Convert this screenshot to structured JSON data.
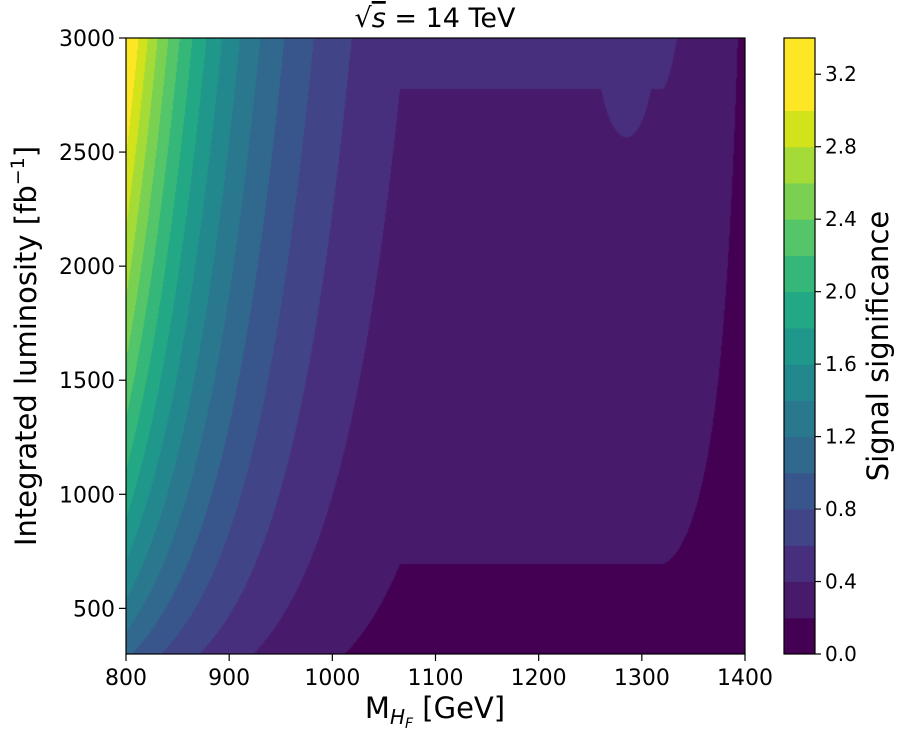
{
  "chart_data": {
    "type": "heatmap",
    "title_prefix": "√",
    "title_s": "s",
    "title_rest": " = 14 TeV",
    "xlabel_main": "M",
    "xlabel_sub_main": "H",
    "xlabel_sub_sub": "F",
    "xlabel_unit": " [GeV]",
    "ylabel_main": "Integrated luminosity [fb",
    "ylabel_sup": "−1",
    "ylabel_end": "]",
    "colorbar_label": "Signal significance",
    "xlim": [
      800,
      1400
    ],
    "ylim": [
      300,
      3000
    ],
    "x_ticks": [
      800,
      900,
      1000,
      1100,
      1200,
      1300,
      1400
    ],
    "x_tick_labels": [
      "800",
      "900",
      "1000",
      "1100",
      "1200",
      "1300",
      "1400"
    ],
    "y_ticks": [
      500,
      1000,
      1500,
      2000,
      2500,
      3000
    ],
    "y_tick_labels": [
      "500",
      "1000",
      "1500",
      "2000",
      "2500",
      "3000"
    ],
    "colorbar_range": [
      0.0,
      3.4
    ],
    "colorbar_ticks": [
      0.0,
      0.4,
      0.8,
      1.2,
      1.6,
      2.0,
      2.4,
      2.8,
      3.2
    ],
    "colorbar_tick_labels": [
      "0.0",
      "0.4",
      "0.8",
      "1.2",
      "1.6",
      "2.0",
      "2.4",
      "2.8",
      "3.2"
    ],
    "contour_levels": [
      0.0,
      0.2,
      0.4,
      0.6,
      0.8,
      1.0,
      1.2,
      1.4,
      1.6,
      1.8,
      2.0,
      2.2,
      2.4,
      2.6,
      2.8,
      3.0,
      3.2,
      3.4
    ],
    "level_colors": [
      "#440154",
      "#481a6c",
      "#472f7d",
      "#414487",
      "#39568c",
      "#31688e",
      "#2a788e",
      "#23888e",
      "#1f988b",
      "#22a884",
      "#35b779",
      "#54c568",
      "#7ad151",
      "#a5db36",
      "#d2e21b",
      "#fde725",
      "#fde725"
    ],
    "significance_at_1400_300": 0.15,
    "significance_at_800_3000": 3.3
  }
}
